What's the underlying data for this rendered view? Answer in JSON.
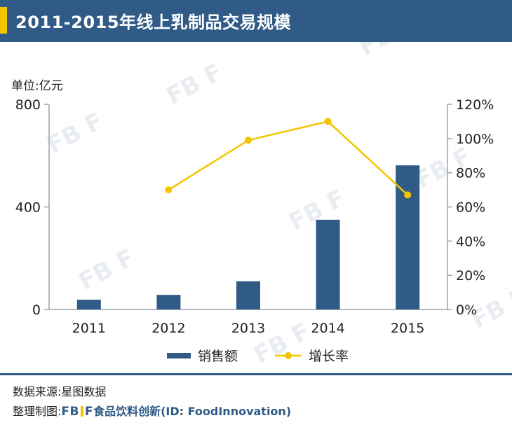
{
  "header": {
    "title": "2011-2015年线上乳制品交易规模",
    "accent_color": "#f5c400",
    "bg_color": "#2f5b86"
  },
  "watermark": "FB F",
  "chart_data": {
    "type": "bar+line",
    "unit_label": "单位:亿元",
    "categories": [
      "2011",
      "2012",
      "2013",
      "2014",
      "2015"
    ],
    "series": [
      {
        "name": "销售额",
        "kind": "bar",
        "axis": "left",
        "color": "#2f5b86",
        "values": [
          38,
          57,
          110,
          350,
          562
        ]
      },
      {
        "name": "增长率",
        "kind": "line",
        "axis": "right",
        "color": "#f5c400",
        "values": [
          null,
          70,
          99,
          110,
          67
        ]
      }
    ],
    "left_axis": {
      "ticks": [
        0,
        400,
        800
      ],
      "tick_labels": [
        "0",
        "400",
        "800"
      ],
      "ylim": [
        0,
        800
      ]
    },
    "right_axis": {
      "ticks": [
        0,
        20,
        40,
        60,
        80,
        100,
        120
      ],
      "tick_labels": [
        "0%",
        "20%",
        "40%",
        "60%",
        "80%",
        "100%",
        "120%"
      ],
      "ylim": [
        0,
        120
      ]
    },
    "legend_position": "bottom-center"
  },
  "footer": {
    "source": "数据来源:星图数据",
    "credit_prefix": "整理制图:",
    "brand_left": "FB",
    "brand_right": "F",
    "credit_suffix": "食品饮料创新(ID: FoodInnovation)"
  }
}
